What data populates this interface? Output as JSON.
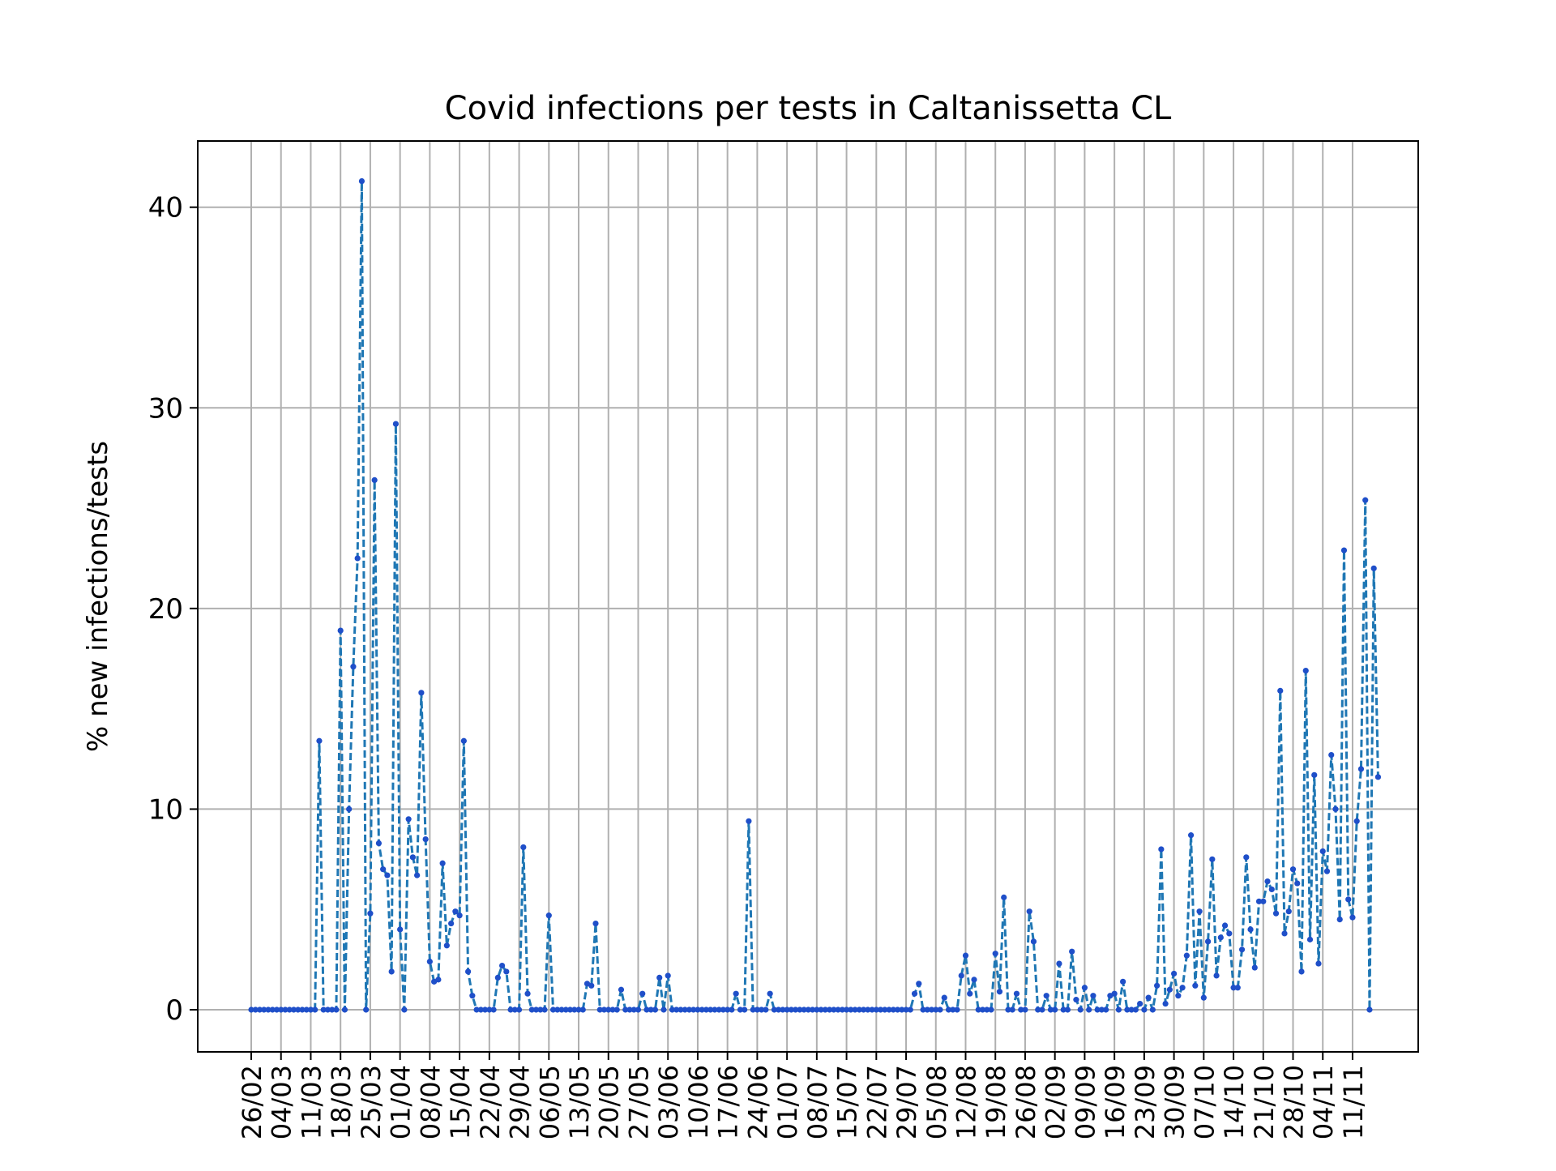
{
  "chart_data": {
    "type": "line",
    "title": "Covid infections per tests in Caltanissetta CL",
    "xlabel": "",
    "ylabel": "% new infections/tests",
    "ylim": [
      -2.1,
      43.3
    ],
    "yticks": [
      0,
      10,
      20,
      30,
      40
    ],
    "grid": true,
    "line_style": "dashed",
    "marker": "dot",
    "colors": {
      "line": "#1f77b4",
      "marker": "#1f4fc9",
      "grid": "#b0b0b0"
    },
    "xticks": [
      "26/02",
      "04/03",
      "11/03",
      "18/03",
      "25/03",
      "01/04",
      "08/04",
      "15/04",
      "22/04",
      "29/04",
      "06/05",
      "13/05",
      "20/05",
      "27/05",
      "03/06",
      "10/06",
      "17/06",
      "24/06",
      "01/07",
      "08/07",
      "15/07",
      "22/07",
      "29/07",
      "05/08",
      "12/08",
      "19/08",
      "26/08",
      "02/09",
      "09/09",
      "16/09",
      "23/09",
      "30/09",
      "07/10",
      "14/10",
      "21/10",
      "28/10",
      "04/11",
      "11/11"
    ],
    "x_start": "26/02",
    "values": [
      0,
      0,
      0,
      0,
      0,
      0,
      0,
      0,
      0,
      0,
      0,
      0,
      0,
      0,
      0,
      0,
      13.4,
      0,
      0,
      0,
      0,
      18.9,
      0,
      10,
      17.1,
      22.5,
      41.3,
      0,
      4.8,
      26.4,
      8.3,
      7,
      6.7,
      1.9,
      29.2,
      4,
      0,
      9.5,
      7.6,
      6.7,
      15.8,
      8.5,
      2.4,
      1.4,
      1.5,
      7.3,
      3.2,
      4.3,
      4.9,
      4.7,
      13.4,
      1.9,
      0.7,
      0,
      0,
      0,
      0,
      0,
      1.6,
      2.2,
      1.9,
      0,
      0,
      0,
      8.1,
      0.8,
      0,
      0,
      0,
      0,
      4.7,
      0,
      0,
      0,
      0,
      0,
      0,
      0,
      0,
      1.3,
      1.2,
      4.3,
      0,
      0,
      0,
      0,
      0,
      1,
      0,
      0,
      0,
      0,
      0.8,
      0,
      0,
      0,
      1.6,
      0,
      1.7,
      0,
      0,
      0,
      0,
      0,
      0,
      0,
      0,
      0,
      0,
      0,
      0,
      0,
      0,
      0,
      0.8,
      0,
      0,
      9.4,
      0,
      0,
      0,
      0,
      0.8,
      0,
      0,
      0,
      0,
      0,
      0,
      0,
      0,
      0,
      0,
      0,
      0,
      0,
      0,
      0,
      0,
      0,
      0,
      0,
      0,
      0,
      0,
      0,
      0,
      0,
      0,
      0,
      0,
      0,
      0,
      0,
      0,
      0,
      0.8,
      1.3,
      0,
      0,
      0,
      0,
      0,
      0.6,
      0,
      0,
      0,
      1.7,
      2.7,
      0.8,
      1.5,
      0,
      0,
      0,
      0,
      2.8,
      0.9,
      5.6,
      0,
      0,
      0.8,
      0,
      0,
      4.9,
      3.4,
      0,
      0,
      0.7,
      0,
      0,
      2.3,
      0,
      0,
      2.9,
      0.5,
      0,
      1.1,
      0,
      0.7,
      0,
      0,
      0,
      0.7,
      0.8,
      0,
      1.4,
      0,
      0,
      0,
      0.3,
      0,
      0.6,
      0,
      1.2,
      8,
      0.3,
      1,
      1.8,
      0.7,
      1.1,
      2.7,
      8.7,
      1.2,
      4.9,
      0.6,
      3.4,
      7.5,
      1.7,
      3.6,
      4.2,
      3.8,
      1.1,
      1.1,
      3,
      7.6,
      4,
      2.1,
      5.4,
      5.4,
      6.4,
      6,
      4.8,
      15.9,
      3.8,
      4.9,
      7,
      6.3,
      1.9,
      16.9,
      3.5,
      11.7,
      2.3,
      7.9,
      6.9,
      12.7,
      10,
      4.5,
      22.9,
      5.5,
      4.6,
      9.4,
      12,
      25.4,
      0,
      22,
      11.6
    ]
  }
}
